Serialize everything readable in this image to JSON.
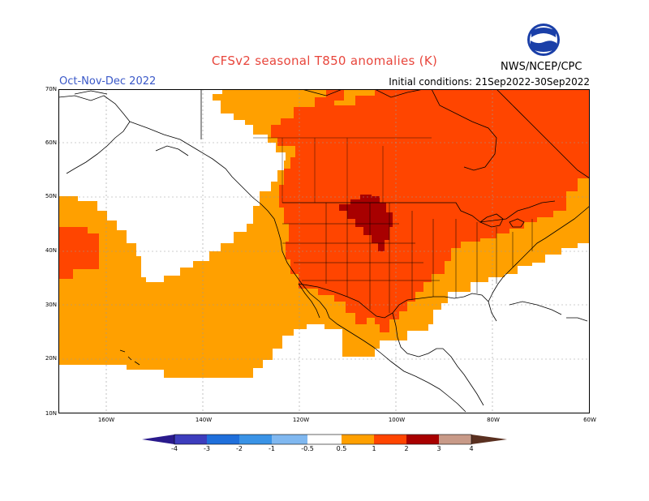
{
  "header": {
    "title": "CFSv2 seasonal T850 anomalies (K)",
    "season": "Oct-Nov-Dec 2022",
    "initial_conditions": "Initial conditions: 21Sep2022-30Sep2022",
    "agency": "NWS/NCEP/CPC",
    "logo_icon": "noaa-logo-icon"
  },
  "axes": {
    "lat_labels": [
      "70N",
      "60N",
      "50N",
      "40N",
      "30N",
      "20N",
      "10N"
    ],
    "lon_labels": [
      "160W",
      "140W",
      "120W",
      "100W",
      "80W",
      "60W"
    ]
  },
  "colorbar": {
    "tick_labels": [
      "-4",
      "-3",
      "-2",
      "-1",
      "-0.5",
      "0.5",
      "1",
      "2",
      "3",
      "4"
    ],
    "colors": [
      "#2a1a8c",
      "#3d3dbd",
      "#1f6fdb",
      "#3a93e6",
      "#80b8f0",
      "#ffffff",
      "#ffa000",
      "#ff4500",
      "#a80000",
      "#c89a88",
      "#5a3020"
    ]
  },
  "colors": {
    "c05": "#ffa000",
    "c1": "#ff4500",
    "c2": "#a80000",
    "land_line": "#000000",
    "grid": "#9a9a9a"
  }
}
